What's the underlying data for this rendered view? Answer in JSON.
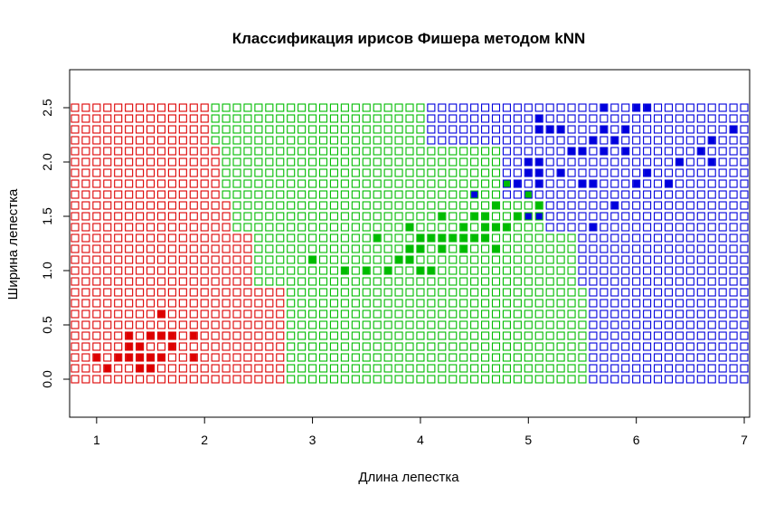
{
  "chart_data": {
    "type": "scatter",
    "title": "Классификация ирисов Фишера методом kNN",
    "xlabel": "Длина лепестка",
    "ylabel": "Ширина лепестка",
    "xlim": [
      0.75,
      7.05
    ],
    "ylim": [
      -0.35,
      2.85
    ],
    "xticks": [
      1,
      2,
      3,
      4,
      5,
      6,
      7
    ],
    "yticks": [
      0.0,
      0.5,
      1.0,
      1.5,
      2.0,
      2.5
    ],
    "ytick_labels": [
      "0.0",
      "0.5",
      "1.0",
      "1.5",
      "2.0",
      "2.5"
    ],
    "grid": false,
    "legend": "none",
    "class_colors": {
      "setosa": "#dd0000",
      "versicolor": "#00bb00",
      "virginica": "#0000dd"
    },
    "classification_grid": {
      "marker": "open-square",
      "x_start": 0.8,
      "x_step": 0.1,
      "x_count": 63,
      "y_start": 0.0,
      "y_step": 0.1,
      "y_count": 26,
      "boundaries": [
        {
          "y_max": 0.8,
          "setosa_below": 2.8,
          "versicolor_below": 5.6
        },
        {
          "y_max": 1.3,
          "setosa_below": 2.5,
          "versicolor_below": 5.5
        },
        {
          "y_max": 1.6,
          "setosa_below": 2.3,
          "versicolor_below": 5.2
        },
        {
          "y_max": 2.1,
          "setosa_below": 2.2,
          "versicolor_below": 4.8
        },
        {
          "y_max": 2.5,
          "setosa_below": 2.1,
          "versicolor_below": 4.1
        }
      ]
    },
    "series": [
      {
        "class": "setosa",
        "marker": "filled-square",
        "points": [
          [
            1.0,
            0.2
          ],
          [
            1.1,
            0.1
          ],
          [
            1.2,
            0.2
          ],
          [
            1.3,
            0.2
          ],
          [
            1.3,
            0.3
          ],
          [
            1.3,
            0.4
          ],
          [
            1.4,
            0.1
          ],
          [
            1.4,
            0.2
          ],
          [
            1.4,
            0.3
          ],
          [
            1.5,
            0.1
          ],
          [
            1.5,
            0.2
          ],
          [
            1.5,
            0.4
          ],
          [
            1.6,
            0.2
          ],
          [
            1.6,
            0.4
          ],
          [
            1.6,
            0.6
          ],
          [
            1.7,
            0.3
          ],
          [
            1.7,
            0.4
          ],
          [
            1.9,
            0.2
          ],
          [
            1.9,
            0.4
          ]
        ]
      },
      {
        "class": "versicolor",
        "marker": "filled-square",
        "points": [
          [
            3.0,
            1.1
          ],
          [
            3.3,
            1.0
          ],
          [
            3.5,
            1.0
          ],
          [
            3.6,
            1.3
          ],
          [
            3.7,
            1.0
          ],
          [
            3.8,
            1.1
          ],
          [
            3.9,
            1.1
          ],
          [
            3.9,
            1.2
          ],
          [
            3.9,
            1.4
          ],
          [
            4.0,
            1.0
          ],
          [
            4.0,
            1.2
          ],
          [
            4.0,
            1.3
          ],
          [
            4.1,
            1.0
          ],
          [
            4.1,
            1.3
          ],
          [
            4.2,
            1.2
          ],
          [
            4.2,
            1.3
          ],
          [
            4.2,
            1.5
          ],
          [
            4.3,
            1.3
          ],
          [
            4.4,
            1.2
          ],
          [
            4.4,
            1.3
          ],
          [
            4.4,
            1.4
          ],
          [
            4.5,
            1.3
          ],
          [
            4.5,
            1.5
          ],
          [
            4.6,
            1.3
          ],
          [
            4.6,
            1.4
          ],
          [
            4.6,
            1.5
          ],
          [
            4.7,
            1.2
          ],
          [
            4.7,
            1.4
          ],
          [
            4.7,
            1.6
          ],
          [
            4.8,
            1.4
          ],
          [
            4.8,
            1.8
          ],
          [
            4.9,
            1.5
          ],
          [
            5.0,
            1.7
          ],
          [
            5.1,
            1.6
          ]
        ]
      },
      {
        "class": "virginica",
        "marker": "filled-square",
        "points": [
          [
            4.5,
            1.7
          ],
          [
            4.9,
            1.8
          ],
          [
            5.0,
            1.5
          ],
          [
            5.0,
            2.0
          ],
          [
            5.0,
            1.9
          ],
          [
            5.1,
            1.8
          ],
          [
            5.1,
            1.9
          ],
          [
            5.1,
            2.0
          ],
          [
            5.1,
            2.3
          ],
          [
            5.1,
            2.4
          ],
          [
            5.1,
            1.5
          ],
          [
            5.2,
            2.3
          ],
          [
            5.3,
            1.9
          ],
          [
            5.3,
            2.3
          ],
          [
            5.4,
            2.1
          ],
          [
            5.5,
            1.8
          ],
          [
            5.5,
            2.1
          ],
          [
            5.6,
            1.4
          ],
          [
            5.6,
            1.8
          ],
          [
            5.6,
            2.2
          ],
          [
            5.7,
            2.1
          ],
          [
            5.7,
            2.3
          ],
          [
            5.7,
            2.5
          ],
          [
            5.8,
            1.6
          ],
          [
            5.8,
            2.2
          ],
          [
            5.9,
            2.1
          ],
          [
            5.9,
            2.3
          ],
          [
            6.0,
            1.8
          ],
          [
            6.0,
            2.5
          ],
          [
            6.1,
            1.9
          ],
          [
            6.1,
            2.5
          ],
          [
            6.3,
            1.8
          ],
          [
            6.4,
            2.0
          ],
          [
            6.6,
            2.1
          ],
          [
            6.7,
            2.0
          ],
          [
            6.7,
            2.2
          ],
          [
            6.9,
            2.3
          ]
        ]
      }
    ]
  }
}
